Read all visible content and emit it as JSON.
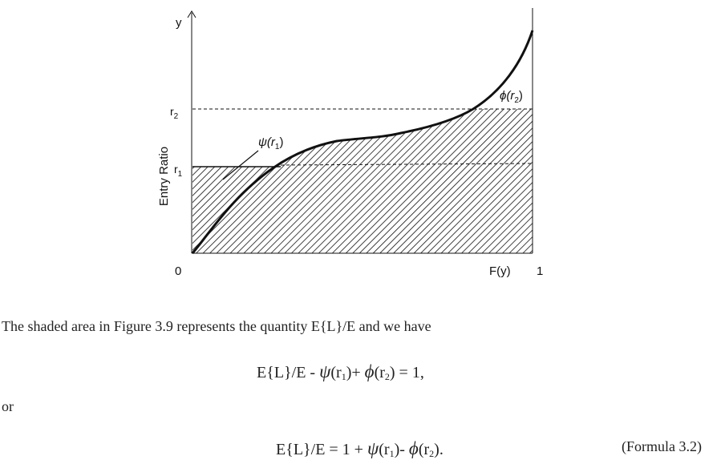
{
  "figure": {
    "y_axis_arrow_label": "y",
    "y_axis_title": "Entry Ratio",
    "r2_label": "r",
    "r2_sub": "2",
    "r1_label": "r",
    "r1_sub": "1",
    "origin_label": "0",
    "x_label": "F(y)",
    "x_end_label": "1",
    "psi_label": "ψ(r",
    "psi_sub": "1",
    "psi_close": ")",
    "phi_label": "ϕ(r",
    "phi_sub": "2",
    "phi_close": ")"
  },
  "text": {
    "paragraph1": "The shaded area in Figure 3.9 represents the quantity E{L}/E and we have",
    "eq1_start": "E{L}/E - ",
    "eq1_psi": "ψ",
    "eq1_psi_arg": "(r",
    "eq1_psi_sub": "1",
    "eq1_mid": ")+ ",
    "eq1_phi": "ϕ",
    "eq1_phi_arg": "(r",
    "eq1_phi_sub": "2",
    "eq1_end": ")  = 1,",
    "or": "or",
    "eq2_start": "E{L}/E = 1 + ",
    "eq2_psi": "ψ",
    "eq2_psi_arg": "(r",
    "eq2_psi_sub": "1",
    "eq2_mid": ")- ",
    "eq2_phi": "ϕ",
    "eq2_phi_arg": "(r",
    "eq2_phi_sub": "2",
    "eq2_end": ").",
    "formula_label": "(Formula 3.2)"
  }
}
